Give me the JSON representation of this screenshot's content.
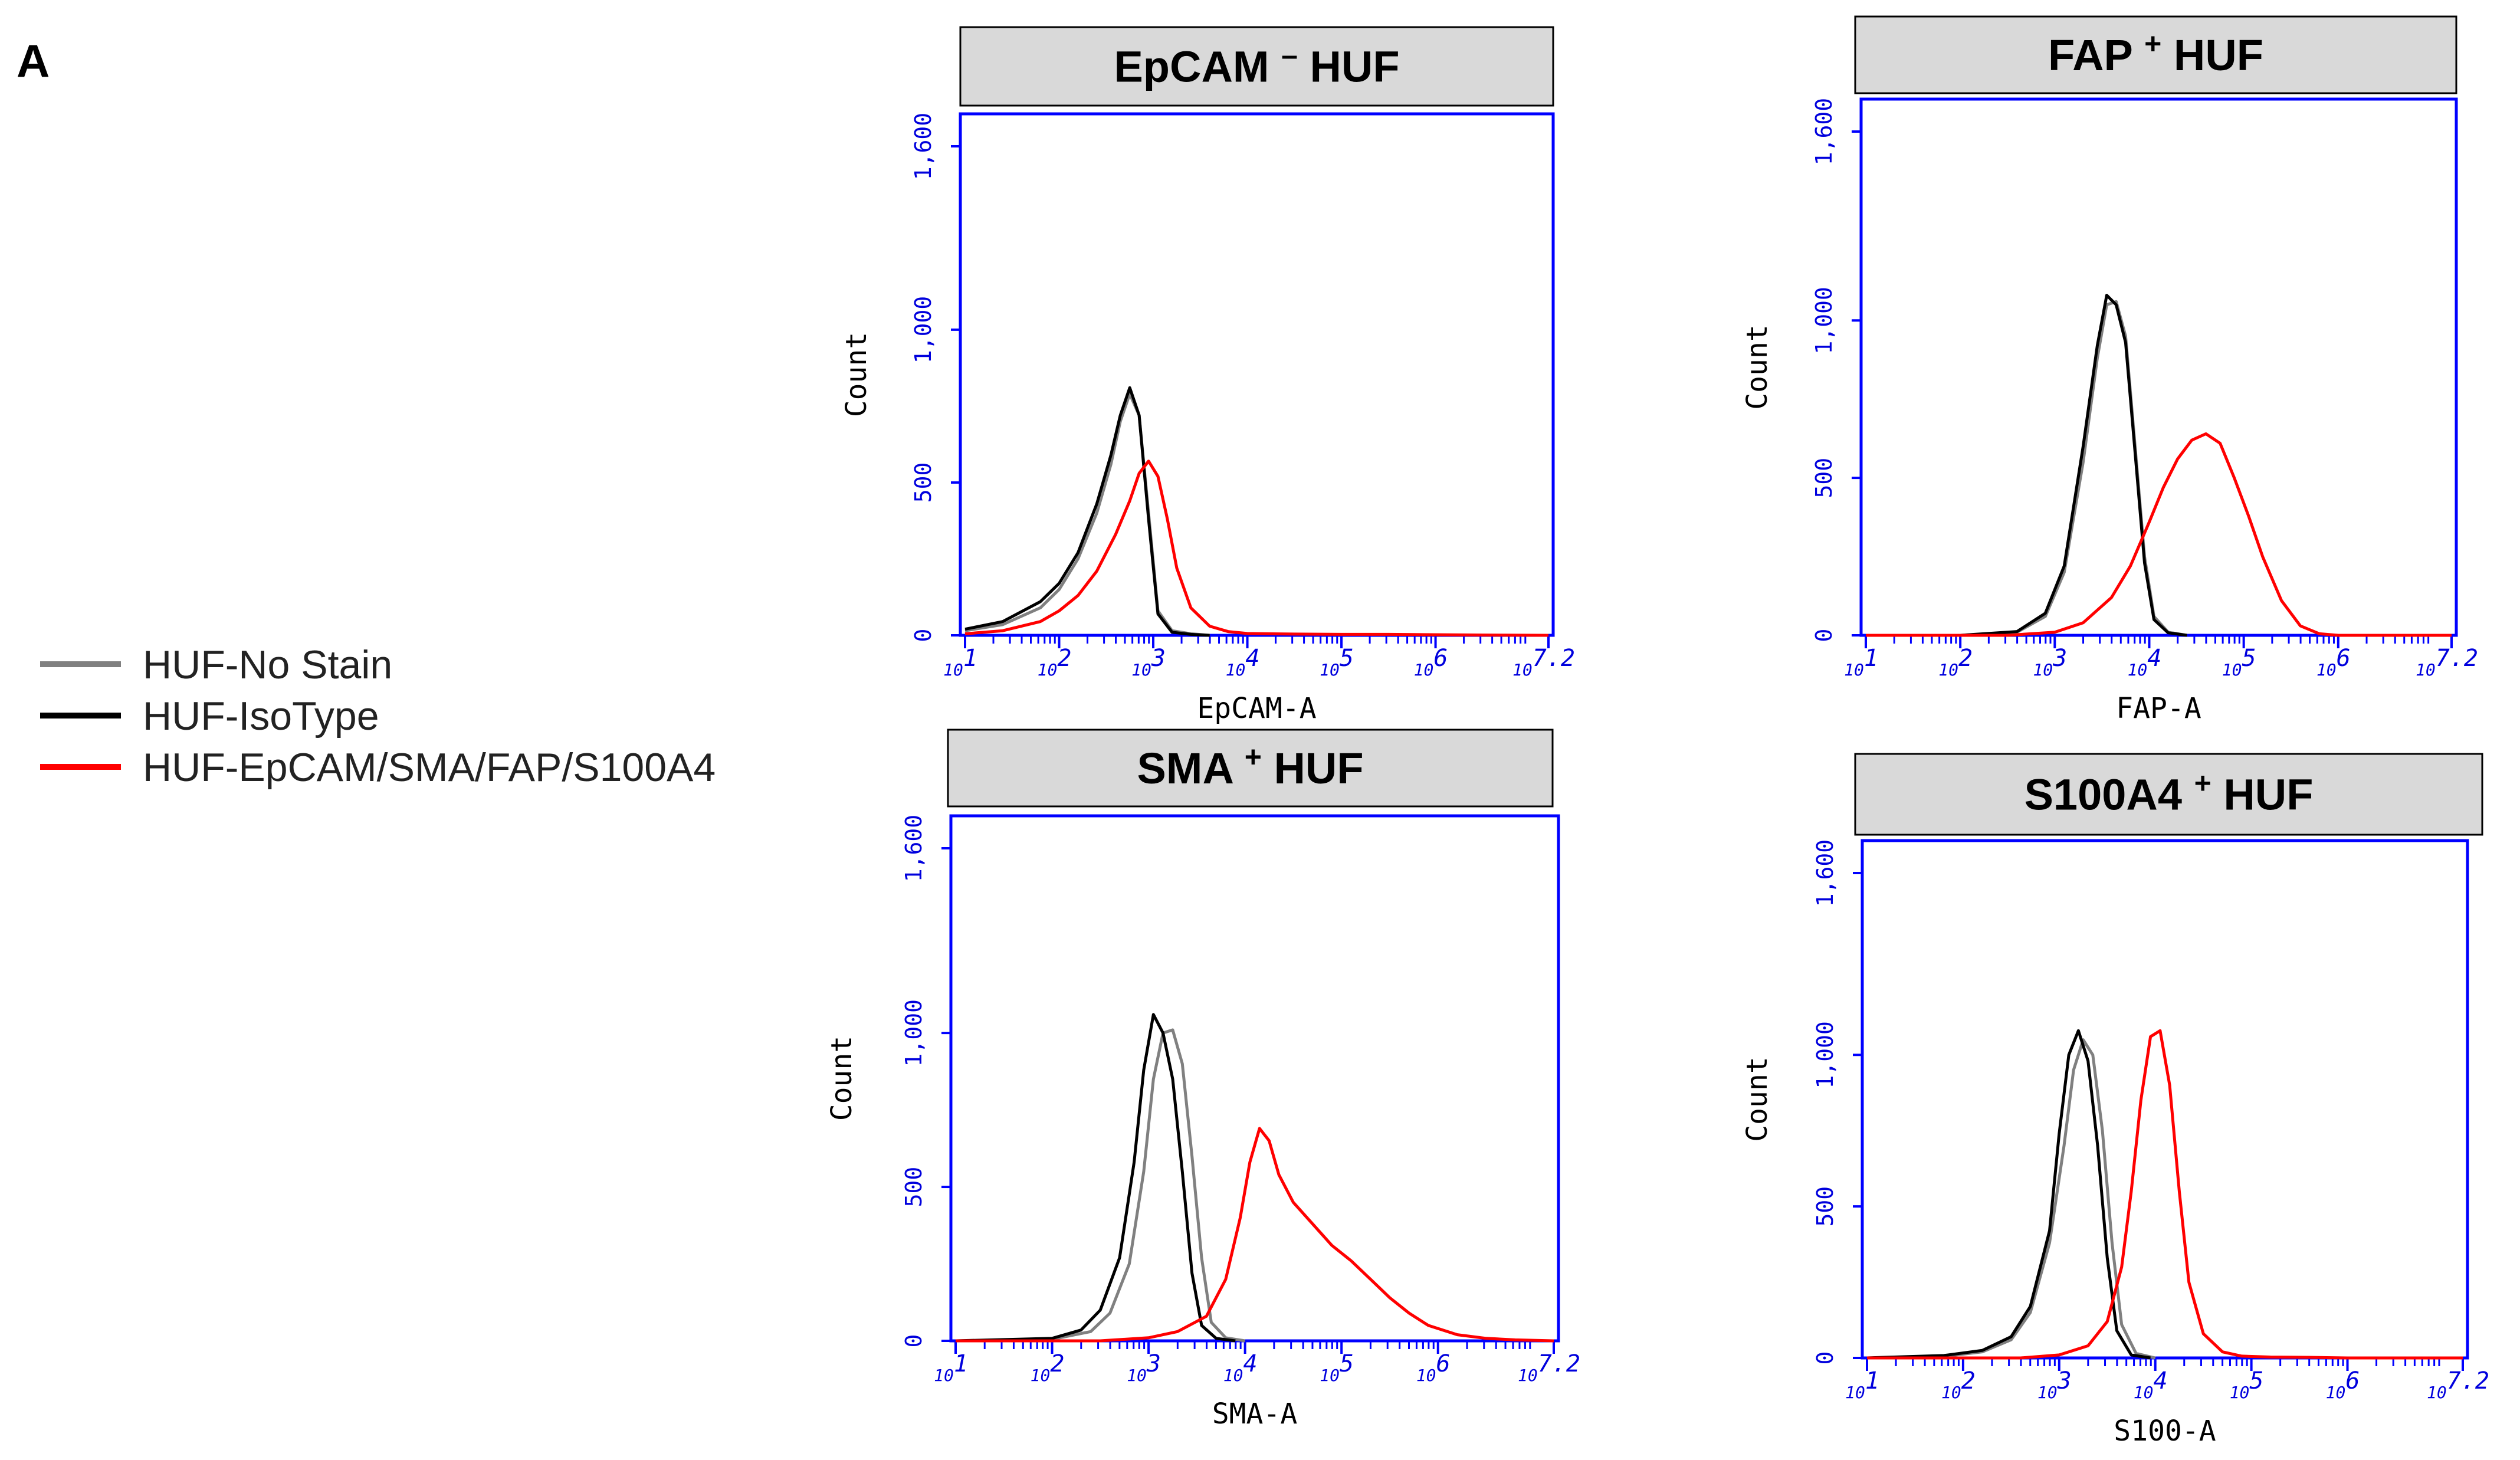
{
  "figure": {
    "panel_label": "A",
    "legend": [
      {
        "label": "HUF-No Stain",
        "color": "#808080"
      },
      {
        "label": "HUF-IsoType",
        "color": "#000000"
      },
      {
        "label": "HUF-EpCAM/SMA/FAP/S100A4",
        "color": "#ff0000"
      }
    ],
    "colors": {
      "axis": "#0000ff",
      "tick_text": "#0000dd",
      "title_box": "#d9d9d9"
    }
  },
  "chart_data": [
    {
      "type": "line",
      "title": "EpCAM",
      "title_sup": "–",
      "title_suffix": "HUF",
      "xlabel": "EpCAM-A",
      "ylabel": "Count",
      "xscale": "log10",
      "xlim": [
        1,
        7.2
      ],
      "ylim": [
        0,
        1600
      ],
      "yticks": [
        0,
        500,
        1000,
        1600
      ],
      "ytick_labels": [
        "0",
        "500",
        "1,000",
        "1,600"
      ],
      "xticks": [
        1,
        2,
        3,
        4,
        5,
        6,
        7.2
      ],
      "xtick_exps": [
        "1",
        "2",
        "3",
        "4",
        "5",
        "6",
        "7.2"
      ],
      "series": [
        {
          "name": "HUF-No Stain",
          "color": "#808080",
          "x": [
            1.0,
            1.4,
            1.8,
            2.0,
            2.2,
            2.4,
            2.55,
            2.65,
            2.75,
            2.85,
            2.95,
            3.05,
            3.2,
            3.4,
            3.6
          ],
          "y": [
            15,
            35,
            90,
            150,
            250,
            400,
            560,
            700,
            790,
            720,
            400,
            80,
            15,
            5,
            0
          ]
        },
        {
          "name": "HUF-IsoType",
          "color": "#000000",
          "x": [
            1.0,
            1.4,
            1.8,
            2.0,
            2.2,
            2.4,
            2.55,
            2.65,
            2.75,
            2.85,
            2.95,
            3.05,
            3.2,
            3.4,
            3.6
          ],
          "y": [
            20,
            45,
            110,
            170,
            270,
            430,
            590,
            720,
            810,
            720,
            380,
            70,
            10,
            3,
            0
          ]
        },
        {
          "name": "HUF-EpCAM/SMA/FAP/S100A4",
          "color": "#ff0000",
          "x": [
            1.0,
            1.4,
            1.8,
            2.0,
            2.2,
            2.4,
            2.6,
            2.75,
            2.85,
            2.95,
            3.05,
            3.15,
            3.25,
            3.4,
            3.6,
            3.8,
            4.0,
            4.5,
            5.0,
            5.5,
            6.0,
            6.5,
            7.2
          ],
          "y": [
            5,
            15,
            45,
            80,
            130,
            210,
            330,
            440,
            530,
            570,
            520,
            380,
            220,
            90,
            30,
            12,
            6,
            4,
            3,
            3,
            2,
            1,
            0
          ]
        }
      ]
    },
    {
      "type": "line",
      "title": "FAP",
      "title_sup": "+",
      "title_suffix": "HUF",
      "xlabel": "FAP-A",
      "ylabel": "Count",
      "xscale": "log10",
      "xlim": [
        1,
        7.2
      ],
      "ylim": [
        0,
        1600
      ],
      "yticks": [
        0,
        500,
        1000,
        1600
      ],
      "ytick_labels": [
        "0",
        "500",
        "1,000",
        "1,600"
      ],
      "xticks": [
        1,
        2,
        3,
        4,
        5,
        6,
        7.2
      ],
      "xtick_exps": [
        "1",
        "2",
        "3",
        "4",
        "5",
        "6",
        "7.2"
      ],
      "series": [
        {
          "name": "HUF-No Stain",
          "color": "#808080",
          "x": [
            1.0,
            2.0,
            2.6,
            2.9,
            3.1,
            3.3,
            3.45,
            3.55,
            3.65,
            3.75,
            3.85,
            3.95,
            4.05,
            4.2,
            4.4
          ],
          "y": [
            0,
            0,
            10,
            60,
            200,
            550,
            880,
            1050,
            1060,
            950,
            600,
            250,
            60,
            10,
            0
          ]
        },
        {
          "name": "HUF-IsoType",
          "color": "#000000",
          "x": [
            1.0,
            2.0,
            2.6,
            2.9,
            3.1,
            3.3,
            3.45,
            3.55,
            3.65,
            3.75,
            3.85,
            3.95,
            4.05,
            4.2,
            4.4
          ],
          "y": [
            0,
            0,
            12,
            70,
            220,
            600,
            920,
            1080,
            1050,
            930,
            580,
            230,
            50,
            8,
            0
          ]
        },
        {
          "name": "HUF-EpCAM/SMA/FAP/S100A4",
          "color": "#ff0000",
          "x": [
            1.0,
            2.5,
            3.0,
            3.3,
            3.6,
            3.8,
            4.0,
            4.15,
            4.3,
            4.45,
            4.6,
            4.75,
            4.9,
            5.05,
            5.2,
            5.4,
            5.6,
            5.8,
            6.0,
            7.2
          ],
          "y": [
            0,
            0,
            10,
            40,
            120,
            220,
            360,
            470,
            560,
            620,
            640,
            610,
            500,
            380,
            250,
            110,
            30,
            5,
            0,
            0
          ]
        }
      ]
    },
    {
      "type": "line",
      "title": "SMA",
      "title_sup": "+",
      "title_suffix": "HUF",
      "xlabel": "SMA-A",
      "ylabel": "Count",
      "xscale": "log10",
      "xlim": [
        1,
        7.2
      ],
      "ylim": [
        0,
        1600
      ],
      "yticks": [
        0,
        500,
        1000,
        1600
      ],
      "ytick_labels": [
        "0",
        "500",
        "1,000",
        "1,600"
      ],
      "xticks": [
        1,
        2,
        3,
        4,
        5,
        6,
        7.2
      ],
      "xtick_exps": [
        "1",
        "2",
        "3",
        "4",
        "5",
        "6",
        "7.2"
      ],
      "series": [
        {
          "name": "HUF-No Stain",
          "color": "#808080",
          "x": [
            1.0,
            2.0,
            2.4,
            2.6,
            2.8,
            2.95,
            3.05,
            3.15,
            3.25,
            3.35,
            3.45,
            3.55,
            3.65,
            3.8,
            4.0
          ],
          "y": [
            0,
            5,
            30,
            90,
            250,
            550,
            850,
            1000,
            1010,
            900,
            600,
            270,
            60,
            10,
            0
          ]
        },
        {
          "name": "HUF-IsoType",
          "color": "#000000",
          "x": [
            1.0,
            2.0,
            2.3,
            2.5,
            2.7,
            2.85,
            2.95,
            3.05,
            3.15,
            3.25,
            3.35,
            3.45,
            3.55,
            3.7,
            3.9
          ],
          "y": [
            0,
            8,
            35,
            100,
            270,
            580,
            880,
            1060,
            1000,
            850,
            550,
            220,
            50,
            8,
            0
          ]
        },
        {
          "name": "HUF-EpCAM/SMA/FAP/S100A4",
          "color": "#ff0000",
          "x": [
            1.0,
            2.5,
            3.0,
            3.3,
            3.6,
            3.8,
            3.95,
            4.05,
            4.15,
            4.25,
            4.35,
            4.5,
            4.7,
            4.9,
            5.1,
            5.3,
            5.5,
            5.7,
            5.9,
            6.2,
            6.5,
            6.8,
            7.2
          ],
          "y": [
            0,
            0,
            10,
            30,
            80,
            200,
            400,
            580,
            690,
            650,
            540,
            450,
            380,
            310,
            260,
            200,
            140,
            90,
            50,
            20,
            8,
            3,
            0
          ]
        }
      ]
    },
    {
      "type": "line",
      "title": "S100A4",
      "title_sup": "+",
      "title_suffix": "HUF",
      "xlabel": "S100-A",
      "ylabel": "Count",
      "xscale": "log10",
      "xlim": [
        1,
        7.2
      ],
      "ylim": [
        0,
        1600
      ],
      "yticks": [
        0,
        500,
        1000,
        1600
      ],
      "ytick_labels": [
        "0",
        "500",
        "1,000",
        "1,600"
      ],
      "xticks": [
        1,
        2,
        3,
        4,
        5,
        6,
        7.2
      ],
      "xtick_exps": [
        "1",
        "2",
        "3",
        "4",
        "5",
        "6",
        "7.2"
      ],
      "series": [
        {
          "name": "HUF-No Stain",
          "color": "#808080",
          "x": [
            1.0,
            1.8,
            2.2,
            2.5,
            2.7,
            2.9,
            3.05,
            3.15,
            3.25,
            3.35,
            3.45,
            3.55,
            3.65,
            3.8,
            4.0
          ],
          "y": [
            0,
            5,
            20,
            60,
            150,
            380,
            700,
            950,
            1050,
            1000,
            750,
            380,
            110,
            15,
            0
          ]
        },
        {
          "name": "HUF-IsoType",
          "color": "#000000",
          "x": [
            1.0,
            1.8,
            2.2,
            2.5,
            2.7,
            2.9,
            3.0,
            3.1,
            3.2,
            3.3,
            3.4,
            3.5,
            3.6,
            3.75,
            3.95
          ],
          "y": [
            0,
            8,
            25,
            70,
            170,
            420,
            740,
            1000,
            1080,
            980,
            700,
            330,
            90,
            10,
            0
          ]
        },
        {
          "name": "HUF-EpCAM/SMA/FAP/S100A4",
          "color": "#ff0000",
          "x": [
            1.0,
            2.6,
            3.0,
            3.3,
            3.5,
            3.65,
            3.75,
            3.85,
            3.95,
            4.05,
            4.15,
            4.25,
            4.35,
            4.5,
            4.7,
            4.9,
            5.2,
            5.6,
            6.0,
            7.2
          ],
          "y": [
            0,
            0,
            10,
            40,
            120,
            300,
            550,
            850,
            1060,
            1080,
            900,
            550,
            250,
            80,
            20,
            6,
            3,
            2,
            0,
            0
          ]
        }
      ]
    }
  ]
}
